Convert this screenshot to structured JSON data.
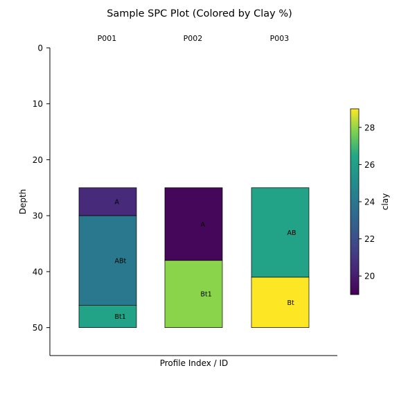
{
  "chart_data": {
    "type": "bar",
    "title": "Sample SPC Plot (Colored by Clay %)",
    "xlabel": "Profile Index / ID",
    "ylabel": "Depth",
    "ylim": [
      55,
      0
    ],
    "y_ticks": [
      0,
      10,
      20,
      30,
      40,
      50
    ],
    "y_tick_labels": [
      "0",
      "10",
      "20",
      "30",
      "40",
      "50"
    ],
    "grid": false,
    "profiles": [
      {
        "id": "P001",
        "horizons": [
          {
            "name": "A",
            "top": 25,
            "bottom": 30,
            "clay": 20.5
          },
          {
            "name": "ABt",
            "top": 30,
            "bottom": 46,
            "clay": 24.0
          },
          {
            "name": "Bt1",
            "top": 46,
            "bottom": 50,
            "clay": 26.2
          }
        ]
      },
      {
        "id": "P002",
        "horizons": [
          {
            "name": "A",
            "top": 25,
            "bottom": 38,
            "clay": 19.2
          },
          {
            "name": "Bt1",
            "top": 38,
            "bottom": 50,
            "clay": 27.9
          }
        ]
      },
      {
        "id": "P003",
        "horizons": [
          {
            "name": "AB",
            "top": 25,
            "bottom": 41,
            "clay": 26.2
          },
          {
            "name": "Bt",
            "top": 41,
            "bottom": 50,
            "clay": 29.0
          }
        ]
      }
    ],
    "colorbar": {
      "label": "clay",
      "colormap": "viridis",
      "range": [
        19,
        29
      ],
      "ticks": [
        20,
        22,
        24,
        26,
        28
      ],
      "tick_labels": [
        "20",
        "22",
        "24",
        "26",
        "28"
      ]
    }
  }
}
